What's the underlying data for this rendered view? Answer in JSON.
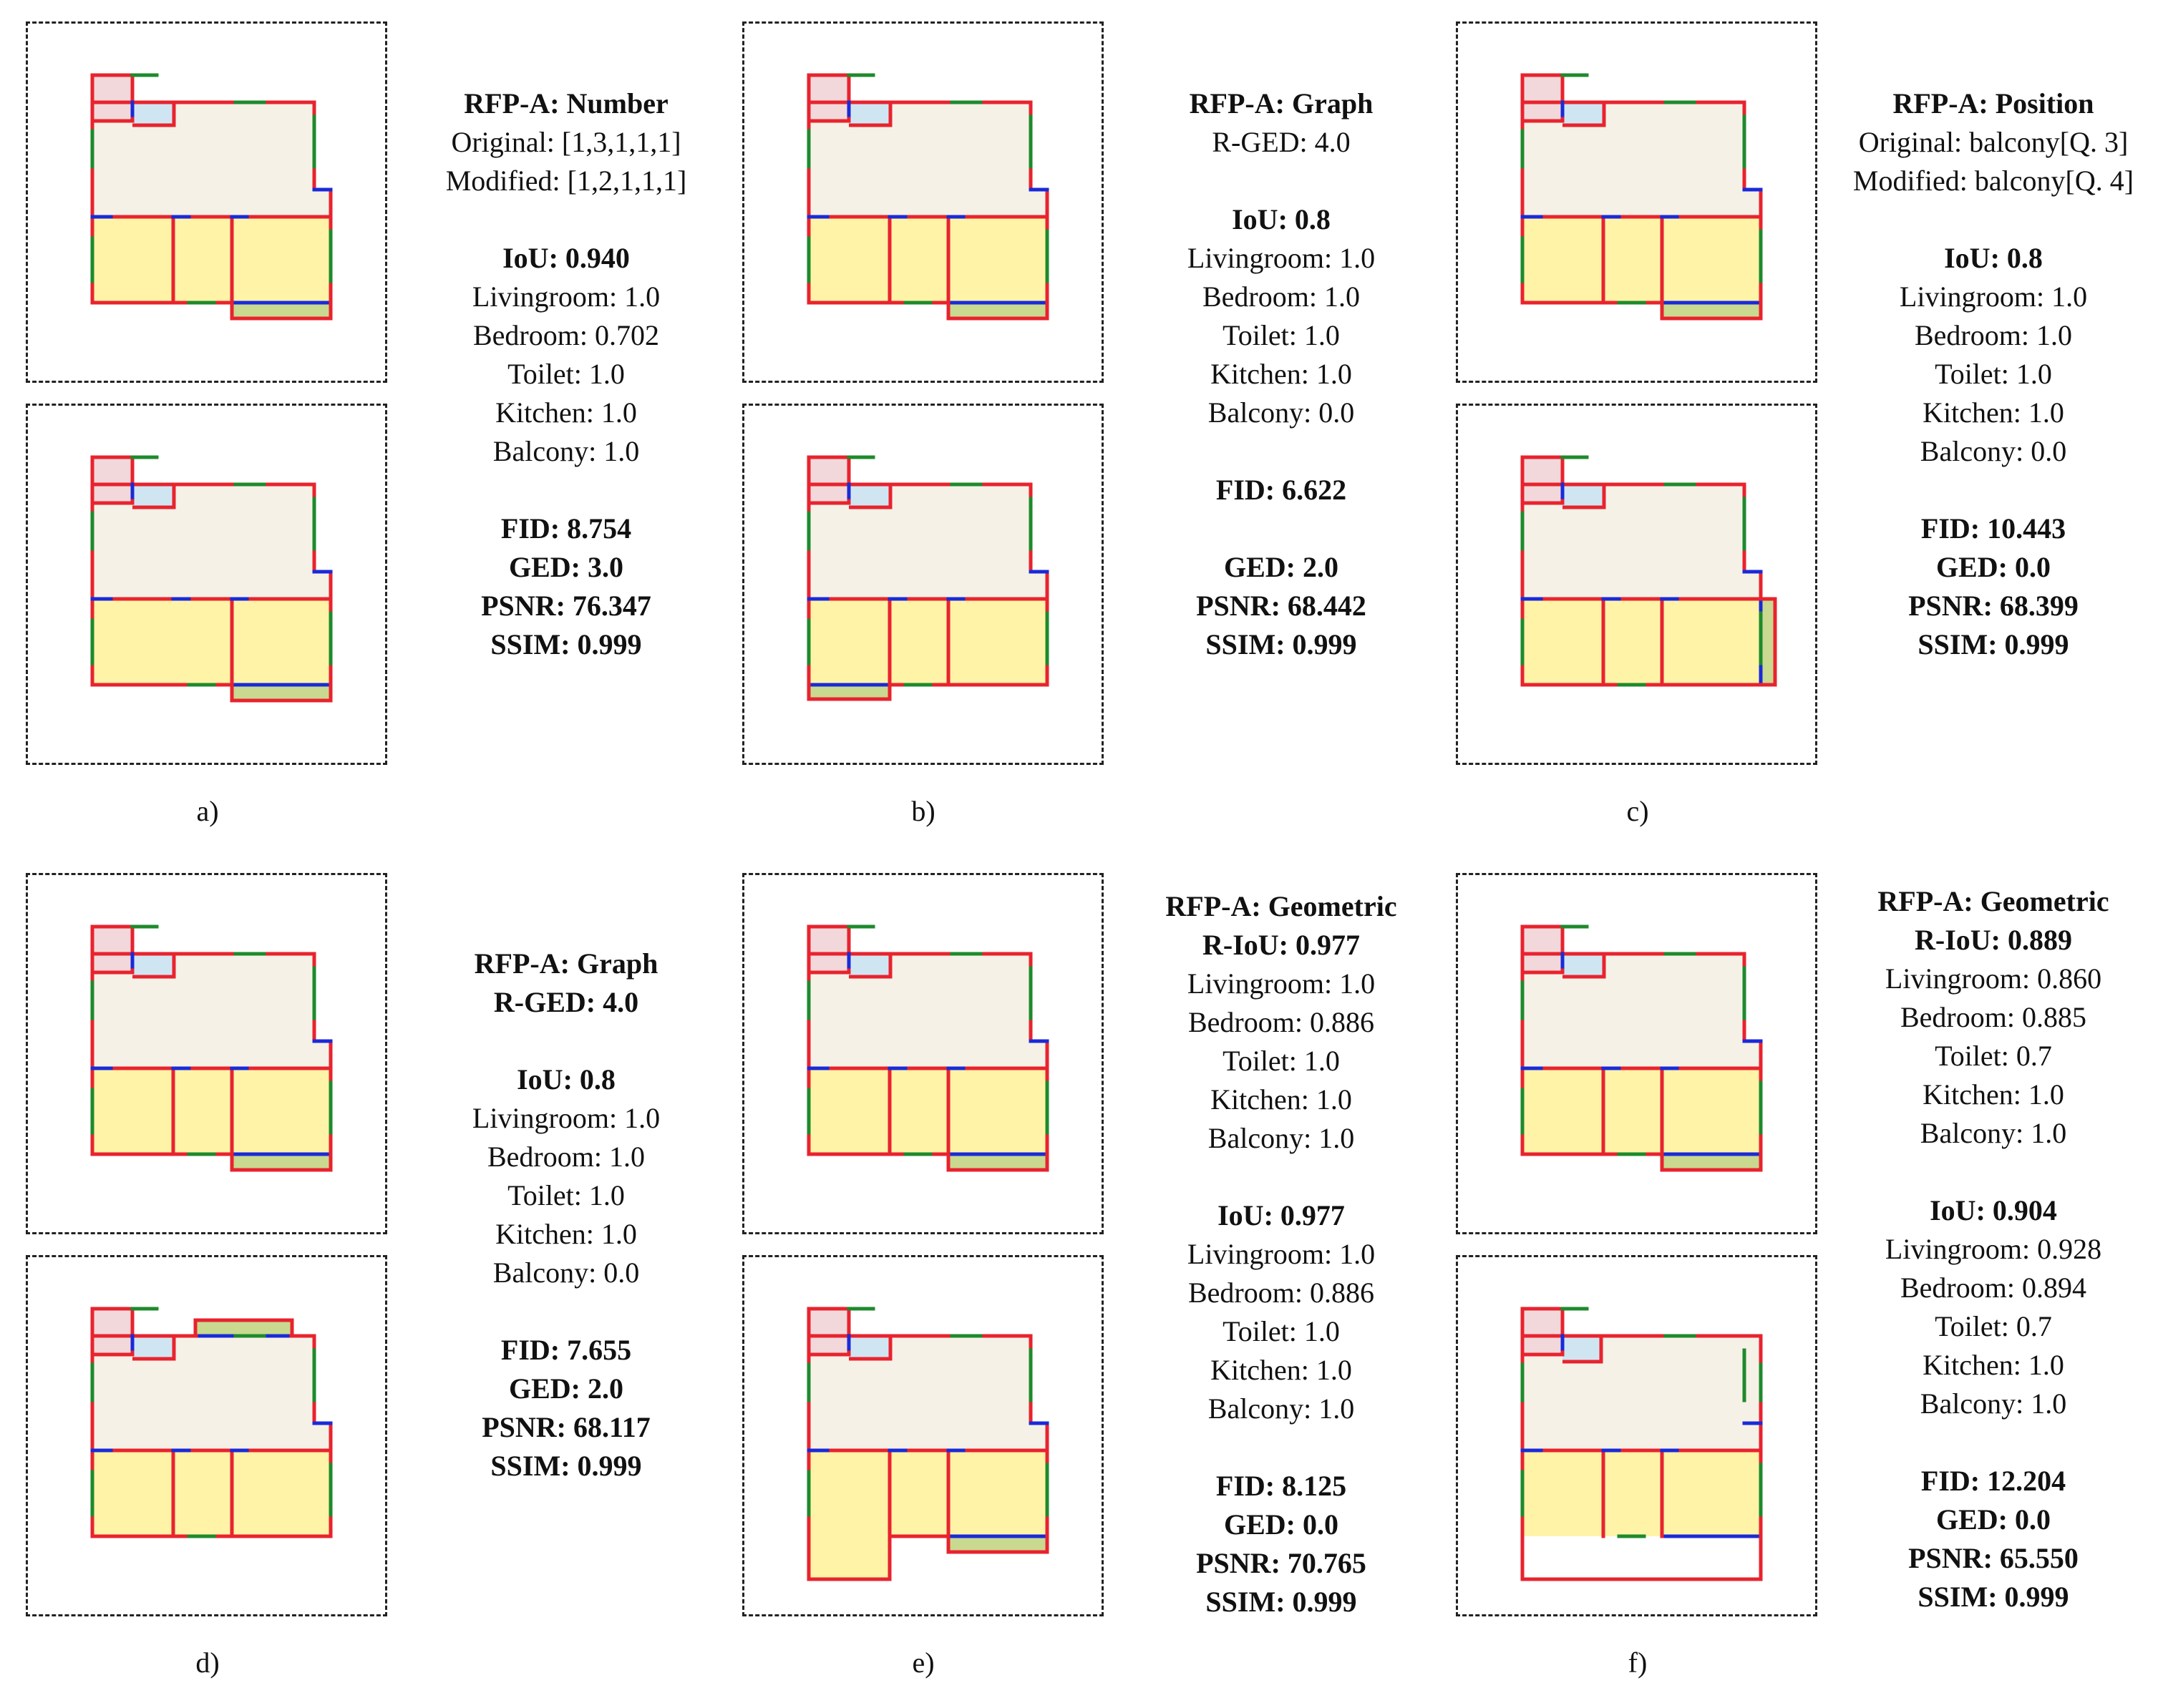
{
  "palette": {
    "living": "#f6f1e6",
    "bed": "#fff3a8",
    "toilet": "#cfe6f2",
    "kitchen": "#f2d8da",
    "balcony": "#c9d98f",
    "wall": "#e8232e",
    "door": "#1a2ad8",
    "window": "#1e8a2c"
  },
  "panels": [
    {
      "label": "a)",
      "text": [
        {
          "t": "RFP-A: Number",
          "b": true
        },
        {
          "t": "Original: [1,3,1,1,1]",
          "b": false
        },
        {
          "t": "Modified: [1,2,1,1,1]",
          "b": false
        },
        {
          "t": "",
          "b": false
        },
        {
          "t": "IoU: 0.940",
          "b": true
        },
        {
          "t": "Livingroom: 1.0",
          "b": false
        },
        {
          "t": "Bedroom: 0.702",
          "b": false
        },
        {
          "t": "Toilet: 1.0",
          "b": false
        },
        {
          "t": "Kitchen: 1.0",
          "b": false
        },
        {
          "t": "Balcony: 1.0",
          "b": false
        },
        {
          "t": "",
          "b": false
        },
        {
          "t": "FID: 8.754",
          "b": true
        },
        {
          "t": "GED: 3.0",
          "b": true
        },
        {
          "t": "PSNR: 76.347",
          "b": true
        },
        {
          "t": "SSIM: 0.999",
          "b": true
        }
      ]
    },
    {
      "label": "b)",
      "text": [
        {
          "t": "RFP-A: Graph",
          "b": true
        },
        {
          "t": "R-GED: 4.0",
          "b": false
        },
        {
          "t": "",
          "b": false
        },
        {
          "t": "IoU: 0.8",
          "b": true
        },
        {
          "t": "Livingroom: 1.0",
          "b": false
        },
        {
          "t": "Bedroom: 1.0",
          "b": false
        },
        {
          "t": "Toilet: 1.0",
          "b": false
        },
        {
          "t": "Kitchen: 1.0",
          "b": false
        },
        {
          "t": "Balcony: 0.0",
          "b": false
        },
        {
          "t": "",
          "b": false
        },
        {
          "t": "FID: 6.622",
          "b": true
        },
        {
          "t": "",
          "b": false
        },
        {
          "t": "GED: 2.0",
          "b": true
        },
        {
          "t": "PSNR: 68.442",
          "b": true
        },
        {
          "t": "SSIM: 0.999",
          "b": true
        }
      ]
    },
    {
      "label": "c)",
      "text": [
        {
          "t": "RFP-A: Position",
          "b": true
        },
        {
          "t": "Original: balcony[Q. 3]",
          "b": false
        },
        {
          "t": "Modified: balcony[Q. 4]",
          "b": false
        },
        {
          "t": "",
          "b": false
        },
        {
          "t": "IoU: 0.8",
          "b": true
        },
        {
          "t": "Livingroom: 1.0",
          "b": false
        },
        {
          "t": "Bedroom: 1.0",
          "b": false
        },
        {
          "t": "Toilet: 1.0",
          "b": false
        },
        {
          "t": "Kitchen: 1.0",
          "b": false
        },
        {
          "t": "Balcony: 0.0",
          "b": false
        },
        {
          "t": "",
          "b": false
        },
        {
          "t": "FID: 10.443",
          "b": true
        },
        {
          "t": "GED: 0.0",
          "b": true
        },
        {
          "t": "PSNR: 68.399",
          "b": true
        },
        {
          "t": "SSIM: 0.999",
          "b": true
        }
      ]
    },
    {
      "label": "d)",
      "text": [
        {
          "t": "RFP-A: Graph",
          "b": true
        },
        {
          "t": "R-GED: 4.0",
          "b": true
        },
        {
          "t": "",
          "b": false
        },
        {
          "t": "IoU: 0.8",
          "b": true
        },
        {
          "t": "Livingroom: 1.0",
          "b": false
        },
        {
          "t": "Bedroom: 1.0",
          "b": false
        },
        {
          "t": "Toilet: 1.0",
          "b": false
        },
        {
          "t": "Kitchen: 1.0",
          "b": false
        },
        {
          "t": "Balcony: 0.0",
          "b": false
        },
        {
          "t": "",
          "b": false
        },
        {
          "t": "FID: 7.655",
          "b": true
        },
        {
          "t": "GED: 2.0",
          "b": true
        },
        {
          "t": "PSNR: 68.117",
          "b": true
        },
        {
          "t": "SSIM: 0.999",
          "b": true
        }
      ]
    },
    {
      "label": "e)",
      "text": [
        {
          "t": "RFP-A: Geometric",
          "b": true
        },
        {
          "t": "R-IoU: 0.977",
          "b": true
        },
        {
          "t": "Livingroom: 1.0",
          "b": false
        },
        {
          "t": "Bedroom: 0.886",
          "b": false
        },
        {
          "t": "Toilet: 1.0",
          "b": false
        },
        {
          "t": "Kitchen: 1.0",
          "b": false
        },
        {
          "t": "Balcony: 1.0",
          "b": false
        },
        {
          "t": "",
          "b": false
        },
        {
          "t": "IoU: 0.977",
          "b": true
        },
        {
          "t": "Livingroom: 1.0",
          "b": false
        },
        {
          "t": "Bedroom: 0.886",
          "b": false
        },
        {
          "t": "Toilet: 1.0",
          "b": false
        },
        {
          "t": "Kitchen: 1.0",
          "b": false
        },
        {
          "t": "Balcony: 1.0",
          "b": false
        },
        {
          "t": "",
          "b": false
        },
        {
          "t": "FID: 8.125",
          "b": true
        },
        {
          "t": "GED: 0.0",
          "b": true
        },
        {
          "t": "PSNR: 70.765",
          "b": true
        },
        {
          "t": "SSIM: 0.999",
          "b": true
        }
      ]
    },
    {
      "label": "f)",
      "text": [
        {
          "t": "RFP-A: Geometric",
          "b": true
        },
        {
          "t": "R-IoU: 0.889",
          "b": true
        },
        {
          "t": "Livingroom: 0.860",
          "b": false
        },
        {
          "t": "Bedroom: 0.885",
          "b": false
        },
        {
          "t": "Toilet: 0.7",
          "b": false
        },
        {
          "t": "Kitchen: 1.0",
          "b": false
        },
        {
          "t": "Balcony: 1.0",
          "b": false
        },
        {
          "t": "",
          "b": false
        },
        {
          "t": "IoU: 0.904",
          "b": true
        },
        {
          "t": "Livingroom: 0.928",
          "b": false
        },
        {
          "t": "Bedroom: 0.894",
          "b": false
        },
        {
          "t": "Toilet: 0.7",
          "b": false
        },
        {
          "t": "Kitchen: 1.0",
          "b": false
        },
        {
          "t": "Balcony: 1.0",
          "b": false
        },
        {
          "t": "",
          "b": false
        },
        {
          "t": "FID: 12.204",
          "b": true
        },
        {
          "t": "GED: 0.0",
          "b": true
        },
        {
          "t": "PSNR: 65.550",
          "b": true
        },
        {
          "t": "SSIM: 0.999",
          "b": true
        }
      ]
    }
  ]
}
